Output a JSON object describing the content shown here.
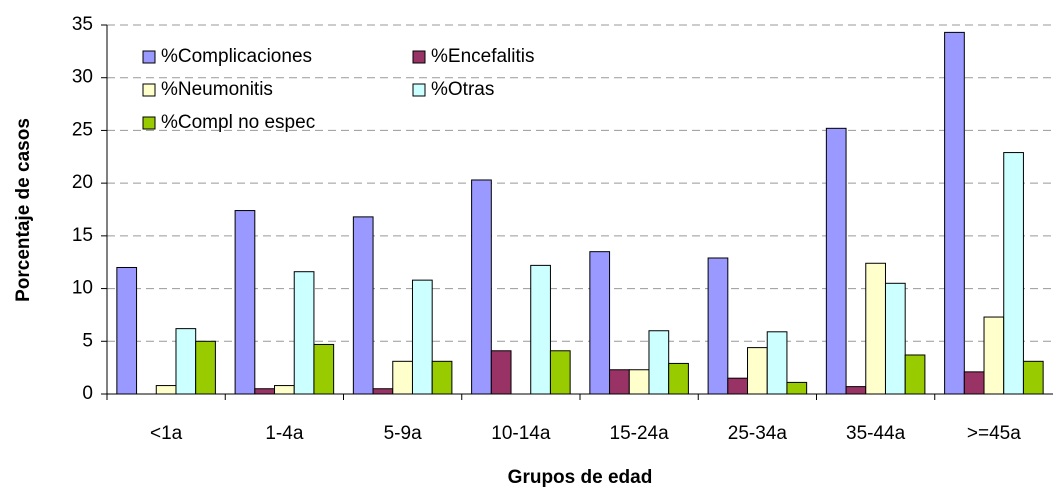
{
  "chart_data": {
    "type": "bar",
    "x_label": "Grupos de edad",
    "y_label": "Porcentaje de casos",
    "categories": [
      "<1a",
      "1-4a",
      "5-9a",
      "10-14a",
      "15-24a",
      "25-34a",
      "35-44a",
      ">=45a"
    ],
    "series": [
      {
        "name": "%Complicaciones",
        "color": "#9999ff",
        "values": [
          12.0,
          17.4,
          16.8,
          20.3,
          13.5,
          12.9,
          25.2,
          34.3
        ]
      },
      {
        "name": "%Encefalitis",
        "color": "#993366",
        "values": [
          0,
          0.5,
          0.5,
          4.1,
          2.3,
          1.5,
          0.7,
          2.1
        ]
      },
      {
        "name": "%Neumonitis",
        "color": "#ffffcc",
        "values": [
          0.8,
          0.8,
          3.1,
          0,
          2.3,
          4.4,
          12.4,
          7.3
        ]
      },
      {
        "name": "%Otras",
        "color": "#ccffff",
        "values": [
          6.2,
          11.6,
          10.8,
          12.2,
          6.0,
          5.9,
          10.5,
          22.9
        ]
      },
      {
        "name": "%Compl no espec",
        "color": "#99cc00",
        "values": [
          5.0,
          4.7,
          3.1,
          4.1,
          2.9,
          1.1,
          3.7,
          3.1
        ]
      }
    ],
    "ylim": [
      0,
      35
    ],
    "yticks": [
      0,
      5,
      10,
      15,
      20,
      25,
      30,
      35
    ],
    "grid": true,
    "legend": "upper-left"
  }
}
